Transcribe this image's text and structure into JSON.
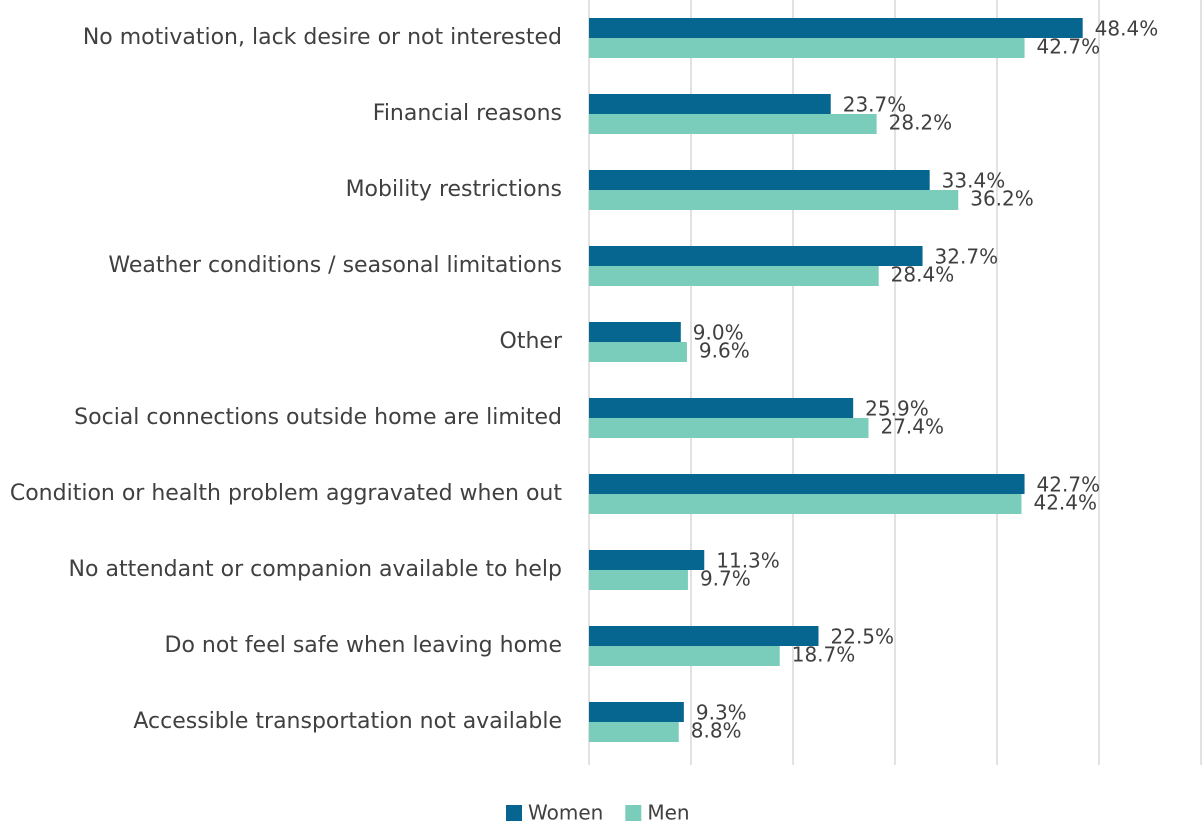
{
  "chart_data": {
    "type": "hbar",
    "categories": [
      "No motivation, lack desire or not interested",
      "Financial reasons",
      "Mobility restrictions",
      "Weather conditions / seasonal limitations",
      "Other",
      "Social connections outside home are limited",
      "Condition or health problem aggravated when out",
      "No attendant or companion available to help",
      "Do not feel safe when leaving home",
      "Accessible transportation not available"
    ],
    "series": [
      {
        "name": "Women",
        "color": "#07668f",
        "values": [
          48.4,
          23.7,
          33.4,
          32.7,
          9.0,
          25.9,
          42.7,
          11.3,
          22.5,
          9.3
        ],
        "value_labels": [
          "48.4%",
          "23.7%",
          "33.4%",
          "32.7%",
          "9.0%",
          "25.9%",
          "42.7%",
          "11.3%",
          "22.5%",
          "9.3%"
        ]
      },
      {
        "name": "Men",
        "color": "#7acdba",
        "values": [
          42.7,
          28.2,
          36.2,
          28.4,
          9.6,
          27.4,
          42.4,
          9.7,
          18.7,
          8.8
        ],
        "value_labels": [
          "42.7%",
          "28.2%",
          "36.2%",
          "28.4%",
          "9.6%",
          "27.4%",
          "42.4%",
          "9.7%",
          "18.7%",
          "8.8%"
        ]
      }
    ],
    "xlim": [
      0,
      60
    ],
    "xticks": [
      0,
      10,
      20,
      30,
      40,
      50,
      60
    ],
    "grid": true,
    "legend": "bottom"
  }
}
